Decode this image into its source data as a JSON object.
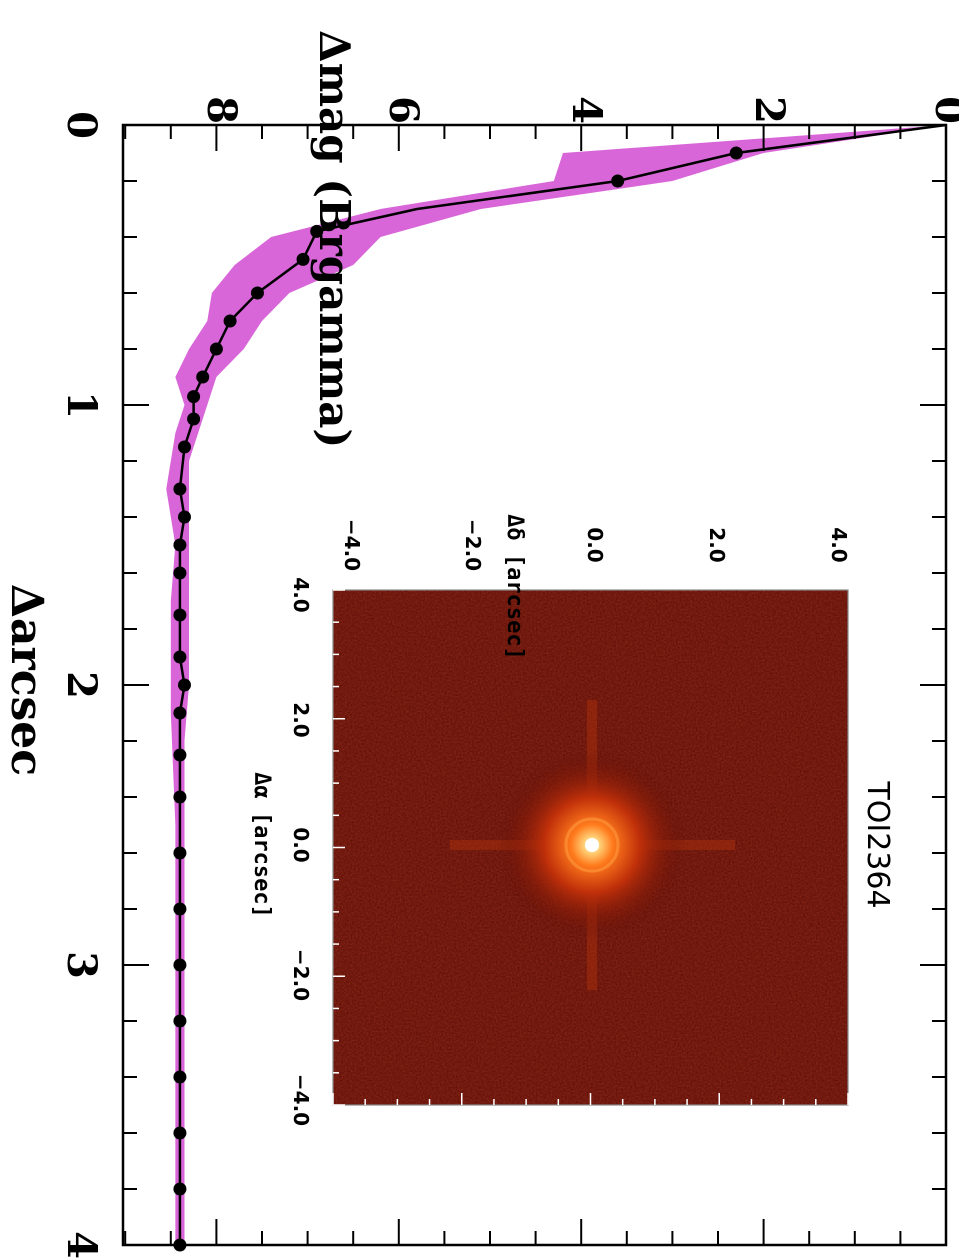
{
  "chart_data": [
    {
      "type": "line",
      "xlabel": "Δarcsec",
      "ylabel": "Δmag (Brgamma)",
      "xlim": [
        0,
        4
      ],
      "ylim": [
        0,
        9
      ],
      "y_inverted": true,
      "x_tick_labels": [
        "0",
        "1",
        "2",
        "3",
        "4"
      ],
      "y_tick_labels": [
        "0",
        "2",
        "4",
        "6",
        "8"
      ],
      "series": [
        {
          "curve": [
            [
              0,
              0
            ],
            [
              0.1,
              2.3
            ],
            [
              0.2,
              3.6
            ],
            [
              0.3,
              5.8
            ],
            [
              0.38,
              6.9
            ],
            [
              0.48,
              7.05
            ],
            [
              0.6,
              7.55
            ],
            [
              0.7,
              7.85
            ],
            [
              0.8,
              8.0
            ],
            [
              0.9,
              8.15
            ],
            [
              0.97,
              8.25
            ],
            [
              1.05,
              8.25
            ],
            [
              1.15,
              8.35
            ],
            [
              1.3,
              8.4
            ],
            [
              1.4,
              8.35
            ],
            [
              1.5,
              8.4
            ],
            [
              1.6,
              8.4
            ],
            [
              1.75,
              8.4
            ],
            [
              1.9,
              8.4
            ],
            [
              2.0,
              8.35
            ],
            [
              2.1,
              8.4
            ],
            [
              2.25,
              8.4
            ],
            [
              2.4,
              8.4
            ],
            [
              2.6,
              8.4
            ],
            [
              2.8,
              8.4
            ],
            [
              3.0,
              8.4
            ],
            [
              3.2,
              8.4
            ],
            [
              3.4,
              8.4
            ],
            [
              3.6,
              8.4
            ],
            [
              3.8,
              8.4
            ],
            [
              4.0,
              8.4
            ]
          ],
          "points": [
            [
              0.1,
              2.3
            ],
            [
              0.2,
              3.6
            ],
            [
              0.38,
              6.9
            ],
            [
              0.48,
              7.05
            ],
            [
              0.6,
              7.55
            ],
            [
              0.7,
              7.85
            ],
            [
              0.8,
              8.0
            ],
            [
              0.9,
              8.15
            ],
            [
              0.97,
              8.25
            ],
            [
              1.05,
              8.25
            ],
            [
              1.15,
              8.35
            ],
            [
              1.3,
              8.4
            ],
            [
              1.4,
              8.35
            ],
            [
              1.5,
              8.4
            ],
            [
              1.6,
              8.4
            ],
            [
              1.75,
              8.4
            ],
            [
              1.9,
              8.4
            ],
            [
              2.0,
              8.35
            ],
            [
              2.1,
              8.4
            ],
            [
              2.25,
              8.4
            ],
            [
              2.4,
              8.4
            ],
            [
              2.6,
              8.4
            ],
            [
              2.8,
              8.4
            ],
            [
              3.0,
              8.4
            ],
            [
              3.2,
              8.4
            ],
            [
              3.4,
              8.4
            ],
            [
              3.6,
              8.4
            ],
            [
              3.8,
              8.4
            ],
            [
              4.0,
              8.4
            ]
          ],
          "color": "#000000"
        }
      ],
      "band": {
        "color": "#d966d9",
        "upper": [
          [
            0,
            0
          ],
          [
            0.1,
            2.0
          ],
          [
            0.2,
            3.0
          ],
          [
            0.3,
            5.1
          ],
          [
            0.4,
            6.2
          ],
          [
            0.5,
            6.5
          ],
          [
            0.6,
            7.2
          ],
          [
            0.7,
            7.5
          ],
          [
            0.8,
            7.7
          ],
          [
            0.9,
            8.0
          ],
          [
            1.0,
            8.1
          ],
          [
            1.1,
            8.2
          ],
          [
            1.2,
            8.3
          ],
          [
            1.4,
            8.3
          ],
          [
            1.6,
            8.3
          ],
          [
            1.8,
            8.3
          ],
          [
            2.0,
            8.3
          ],
          [
            2.2,
            8.35
          ],
          [
            2.5,
            8.35
          ],
          [
            3.0,
            8.35
          ],
          [
            3.5,
            8.35
          ],
          [
            4.0,
            8.35
          ]
        ],
        "lower": [
          [
            0,
            0
          ],
          [
            0.1,
            4.2
          ],
          [
            0.2,
            4.3
          ],
          [
            0.3,
            6.2
          ],
          [
            0.4,
            7.4
          ],
          [
            0.5,
            7.8
          ],
          [
            0.6,
            8.05
          ],
          [
            0.7,
            8.1
          ],
          [
            0.8,
            8.3
          ],
          [
            0.9,
            8.45
          ],
          [
            1.0,
            8.35
          ],
          [
            1.1,
            8.45
          ],
          [
            1.3,
            8.55
          ],
          [
            1.5,
            8.45
          ],
          [
            1.7,
            8.5
          ],
          [
            2.0,
            8.5
          ],
          [
            2.1,
            8.5
          ],
          [
            2.5,
            8.45
          ],
          [
            3.0,
            8.45
          ],
          [
            3.5,
            8.45
          ],
          [
            4.0,
            8.45
          ]
        ]
      }
    },
    {
      "type": "heatmap",
      "title": "TOI2364",
      "xlabel": "Δα [arcsec]",
      "ylabel": "Δδ [arcsec]",
      "xlim": [
        4.0,
        -4.0
      ],
      "ylim": [
        -4.0,
        4.0
      ],
      "x_tick_labels": [
        "4.0",
        "2.0",
        "0.0",
        "−2.0",
        "−4.0"
      ],
      "y_tick_labels": [
        "−4.0",
        "−2.0",
        "0.0",
        "2.0",
        "4.0"
      ],
      "colormap": [
        "#5a0a05",
        "#b92a08",
        "#ff8a20",
        "#ffffff"
      ],
      "source_position": [
        0.0,
        0.0
      ]
    }
  ]
}
